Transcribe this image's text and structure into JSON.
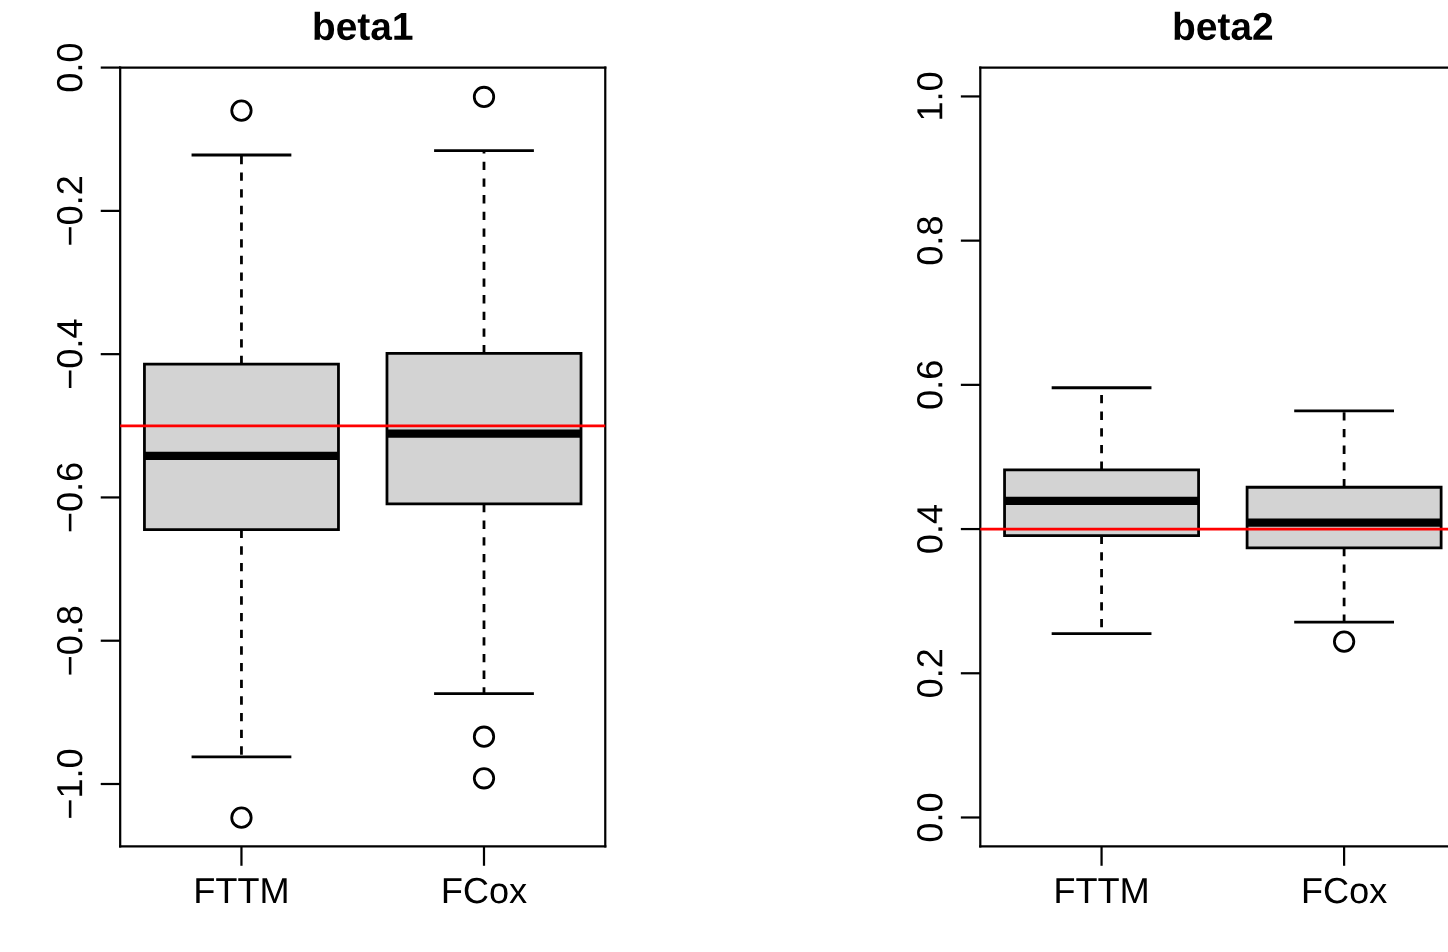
{
  "chart_data": [
    {
      "type": "box",
      "title": "beta1",
      "categories": [
        "FTTM",
        "FCox"
      ],
      "ylim": [
        -1.087,
        0.0
      ],
      "yticks": [
        {
          "value": 0,
          "label": "0.0"
        },
        {
          "value": -0.2,
          "label": "−0.2"
        },
        {
          "value": -0.4,
          "label": "−0.4"
        },
        {
          "value": -0.6,
          "label": "−0.6"
        },
        {
          "value": -0.8,
          "label": "−0.8"
        },
        {
          "value": -1,
          "label": "−1.0"
        }
      ],
      "boxes": [
        {
          "low": -0.962,
          "q1": -0.645,
          "median": -0.542,
          "q3": -0.414,
          "high": -0.122,
          "outliers": [
            -0.06,
            -1.047
          ]
        },
        {
          "low": -0.874,
          "q1": -0.609,
          "median": -0.511,
          "q3": -0.399,
          "high": -0.116,
          "outliers": [
            -0.041,
            -0.934,
            -0.992
          ]
        }
      ],
      "ref_lines": [
        {
          "axis": "y",
          "value": -0.5,
          "color": "#ff0000"
        }
      ],
      "grid": false,
      "legend": false
    },
    {
      "type": "box",
      "title": "beta2",
      "categories": [
        "FTTM",
        "FCox"
      ],
      "ylim": [
        -0.04,
        1.04
      ],
      "yticks": [
        {
          "value": 0,
          "label": "0.0"
        },
        0.2,
        0.4,
        0.6,
        0.8,
        {
          "value": 1,
          "label": "1.0"
        }
      ],
      "boxes": [
        {
          "low": 0.255,
          "q1": 0.391,
          "median": 0.439,
          "q3": 0.482,
          "high": 0.596
        },
        {
          "low": 0.271,
          "q1": 0.374,
          "median": 0.409,
          "q3": 0.458,
          "high": 0.564,
          "outliers": [
            0.244
          ]
        }
      ],
      "ref_lines": [
        {
          "axis": "y",
          "value": 0.4,
          "color": "#ff0000"
        }
      ],
      "grid": false,
      "legend": false
    }
  ]
}
